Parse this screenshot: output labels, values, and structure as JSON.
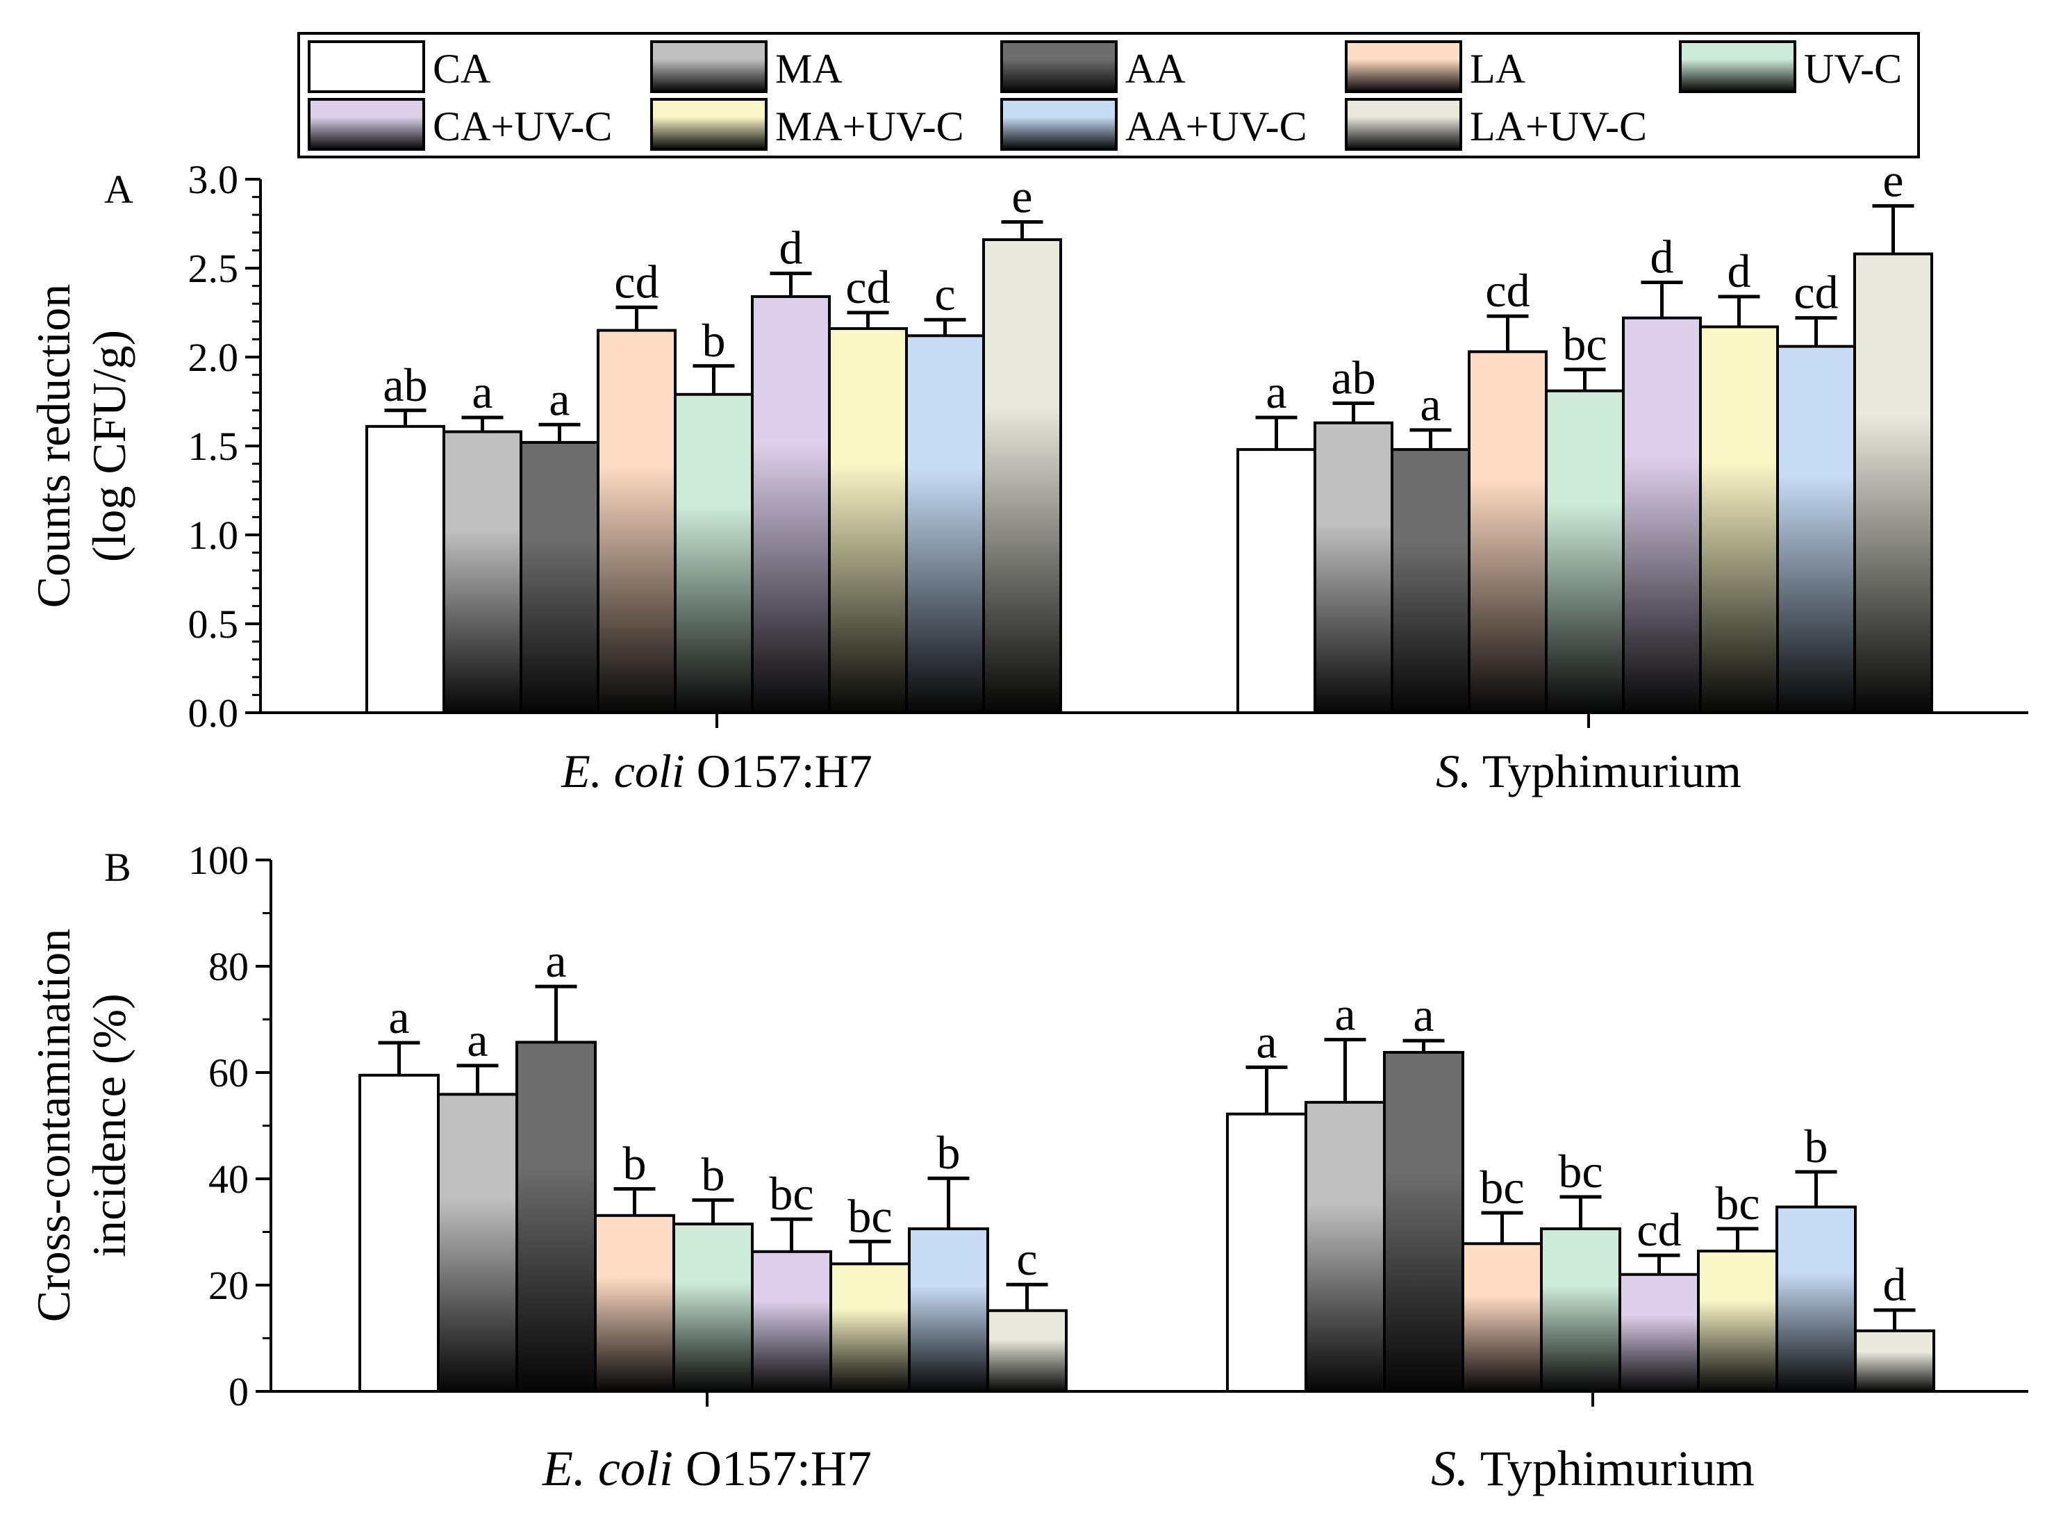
{
  "legend": {
    "items": [
      {
        "label": "CA",
        "color": "#ffffff"
      },
      {
        "label": "MA",
        "color": "#c0c0c0"
      },
      {
        "label": "AA",
        "color": "#6e6e6e"
      },
      {
        "label": "LA",
        "color": "#ffdcc4"
      },
      {
        "label": "UV-C",
        "color": "#cdebd9"
      },
      {
        "label": "CA+UV-C",
        "color": "#ddd0ec"
      },
      {
        "label": "MA+UV-C",
        "color": "#f9f7c6"
      },
      {
        "label": "AA+UV-C",
        "color": "#c7ddf6"
      },
      {
        "label": "LA+UV-C",
        "color": "#e9e9dd"
      }
    ]
  },
  "chart_data": [
    {
      "type": "bar",
      "panel_label": "A",
      "ylabel_line1": "Counts reduction",
      "ylabel_line2": "(log CFU/g)",
      "ylim": [
        0,
        3.0
      ],
      "yticks": [
        "0.0",
        "0.5",
        "1.0",
        "1.5",
        "2.0",
        "2.5",
        "3.0"
      ],
      "categories": [
        {
          "italic": "E. coli",
          "rest": " O157:H7"
        },
        {
          "italic": "S.",
          "rest": " Typhimurium"
        }
      ],
      "series": [
        {
          "name": "CA",
          "values": [
            1.61,
            1.48
          ],
          "errors": [
            0.09,
            0.18
          ],
          "letters": [
            "ab",
            "a"
          ]
        },
        {
          "name": "MA",
          "values": [
            1.58,
            1.63
          ],
          "errors": [
            0.08,
            0.11
          ],
          "letters": [
            "a",
            "ab"
          ]
        },
        {
          "name": "AA",
          "values": [
            1.52,
            1.48
          ],
          "errors": [
            0.1,
            0.11
          ],
          "letters": [
            "a",
            "a"
          ]
        },
        {
          "name": "LA",
          "values": [
            2.15,
            2.03
          ],
          "errors": [
            0.13,
            0.2
          ],
          "letters": [
            "cd",
            "cd"
          ]
        },
        {
          "name": "UV-C",
          "values": [
            1.79,
            1.81
          ],
          "errors": [
            0.16,
            0.12
          ],
          "letters": [
            "b",
            "bc"
          ]
        },
        {
          "name": "CA+UV-C",
          "values": [
            2.34,
            2.22
          ],
          "errors": [
            0.13,
            0.2
          ],
          "letters": [
            "d",
            "d"
          ]
        },
        {
          "name": "MA+UV-C",
          "values": [
            2.16,
            2.17
          ],
          "errors": [
            0.09,
            0.17
          ],
          "letters": [
            "cd",
            "d"
          ]
        },
        {
          "name": "AA+UV-C",
          "values": [
            2.12,
            2.06
          ],
          "errors": [
            0.09,
            0.16
          ],
          "letters": [
            "c",
            "cd"
          ]
        },
        {
          "name": "LA+UV-C",
          "values": [
            2.66,
            2.58
          ],
          "errors": [
            0.1,
            0.27
          ],
          "letters": [
            "e",
            "e"
          ]
        }
      ]
    },
    {
      "type": "bar",
      "panel_label": "B",
      "ylabel_line1": "Cross-contamination",
      "ylabel_line2": "incidence (%)",
      "ylim": [
        0,
        100
      ],
      "yticks": [
        "0",
        "20",
        "40",
        "60",
        "80",
        "100"
      ],
      "categories": [
        {
          "italic": "E. coli",
          "rest": " O157:H7"
        },
        {
          "italic": "S.",
          "rest": " Typhimurium"
        }
      ],
      "series": [
        {
          "name": "CA",
          "values": [
            59.5,
            52.2
          ],
          "errors": [
            6.1,
            8.8
          ],
          "letters": [
            "a",
            "a"
          ]
        },
        {
          "name": "MA",
          "values": [
            55.9,
            54.4
          ],
          "errors": [
            5.4,
            11.8
          ],
          "letters": [
            "a",
            "a"
          ]
        },
        {
          "name": "AA",
          "values": [
            65.7,
            63.8
          ],
          "errors": [
            10.5,
            2.2
          ],
          "letters": [
            "a",
            "a"
          ]
        },
        {
          "name": "LA",
          "values": [
            33.1,
            27.8
          ],
          "errors": [
            5.0,
            5.8
          ],
          "letters": [
            "b",
            "bc"
          ]
        },
        {
          "name": "UV-C",
          "values": [
            31.5,
            30.6
          ],
          "errors": [
            4.5,
            6.0
          ],
          "letters": [
            "b",
            "bc"
          ]
        },
        {
          "name": "CA+UV-C",
          "values": [
            26.3,
            22.0
          ],
          "errors": [
            6.1,
            3.6
          ],
          "letters": [
            "bc",
            "cd"
          ]
        },
        {
          "name": "MA+UV-C",
          "values": [
            24.0,
            26.4
          ],
          "errors": [
            4.2,
            4.2
          ],
          "letters": [
            "bc",
            "bc"
          ]
        },
        {
          "name": "AA+UV-C",
          "values": [
            30.6,
            34.7
          ],
          "errors": [
            9.5,
            6.6
          ],
          "letters": [
            "b",
            "b"
          ]
        },
        {
          "name": "LA+UV-C",
          "values": [
            15.2,
            11.4
          ],
          "errors": [
            4.9,
            3.9
          ],
          "letters": [
            "c",
            "d"
          ]
        }
      ]
    }
  ]
}
